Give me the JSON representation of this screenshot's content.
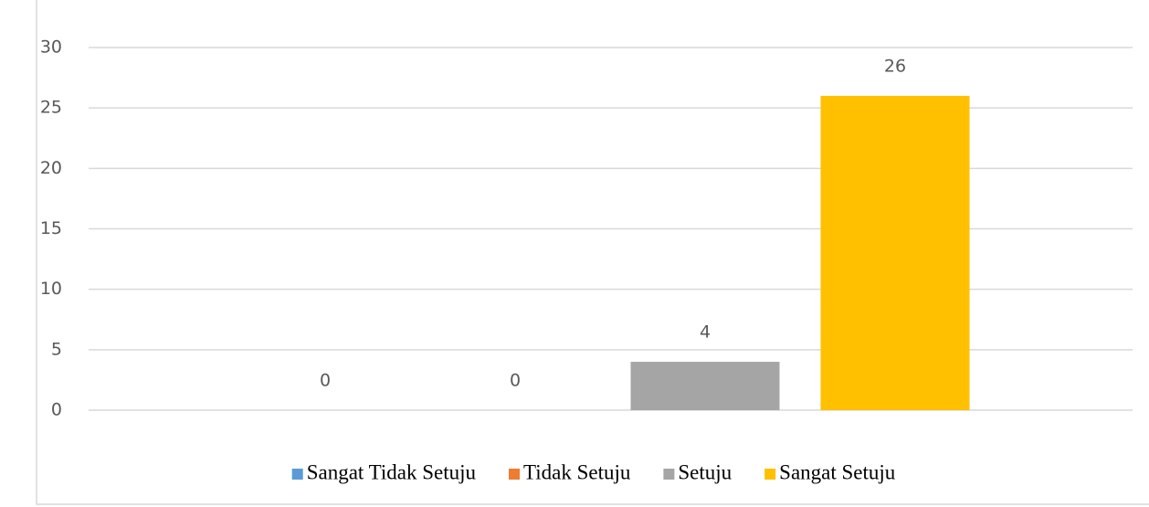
{
  "chart_data": {
    "type": "bar",
    "series": [
      {
        "name": "Sangat Tidak Setuju",
        "color": "#5b9bd5",
        "values": [
          0
        ]
      },
      {
        "name": "Tidak Setuju",
        "color": "#ed7d31",
        "values": [
          0
        ]
      },
      {
        "name": "Setuju",
        "color": "#a5a5a5",
        "values": [
          4
        ]
      },
      {
        "name": "Sangat Setuju",
        "color": "#ffc000",
        "values": [
          26
        ]
      }
    ],
    "ylim": [
      0,
      30
    ],
    "yticks": [
      0,
      5,
      10,
      15,
      20,
      25,
      30
    ],
    "grid": true,
    "legend": "bottom"
  }
}
